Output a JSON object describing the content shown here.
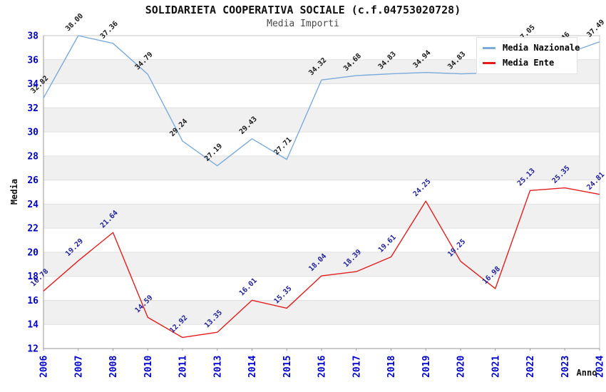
{
  "chart_data": {
    "type": "line",
    "title": "SOLIDARIETA COOPERATIVA SOCIALE (c.f.04753020728)",
    "subtitle": "Media Importi",
    "xlabel": "Anno",
    "ylabel": "Media",
    "categories": [
      "2006",
      "2007",
      "2008",
      "2010",
      "2011",
      "2013",
      "2014",
      "2015",
      "2016",
      "2017",
      "2018",
      "2019",
      "2020",
      "2021",
      "2022",
      "2023",
      "2024"
    ],
    "series": [
      {
        "name": "Media Nazionale",
        "color": "#7aabdc",
        "label_color": "#1a1a1a",
        "values": [
          32.82,
          38.0,
          37.36,
          34.79,
          29.24,
          27.19,
          29.43,
          27.71,
          34.32,
          34.68,
          34.83,
          34.94,
          34.83,
          34.9,
          37.05,
          36.46,
          37.49
        ]
      },
      {
        "name": "Media Ente",
        "color": "#e51c1c",
        "label_color": "#1f1f9c",
        "values": [
          16.78,
          19.29,
          21.64,
          14.59,
          12.92,
          13.35,
          16.01,
          15.35,
          18.04,
          18.39,
          19.61,
          24.25,
          19.25,
          16.98,
          25.13,
          25.35,
          24.81
        ]
      }
    ],
    "ylim": [
      12,
      38
    ],
    "ytick_step": 2,
    "yticks": [
      12,
      14,
      16,
      18,
      20,
      22,
      24,
      26,
      28,
      30,
      32,
      34,
      36,
      38
    ],
    "grid": "horizontal gridlines with alternating light-gray bands",
    "legend_position": "top-right inside plot",
    "tick_label_color": "#0000cd",
    "band_color": "#f0f0f0",
    "gridline_color": "#e0e0e0",
    "plot_border_color": "#c6c6c6",
    "notes": "Point labels rotated 45deg. 'Media Nazionale' 2021 label is hidden behind the legend (value estimated from line position ~34.9); its 2023 label is partially hidden (only '46' visible)."
  }
}
